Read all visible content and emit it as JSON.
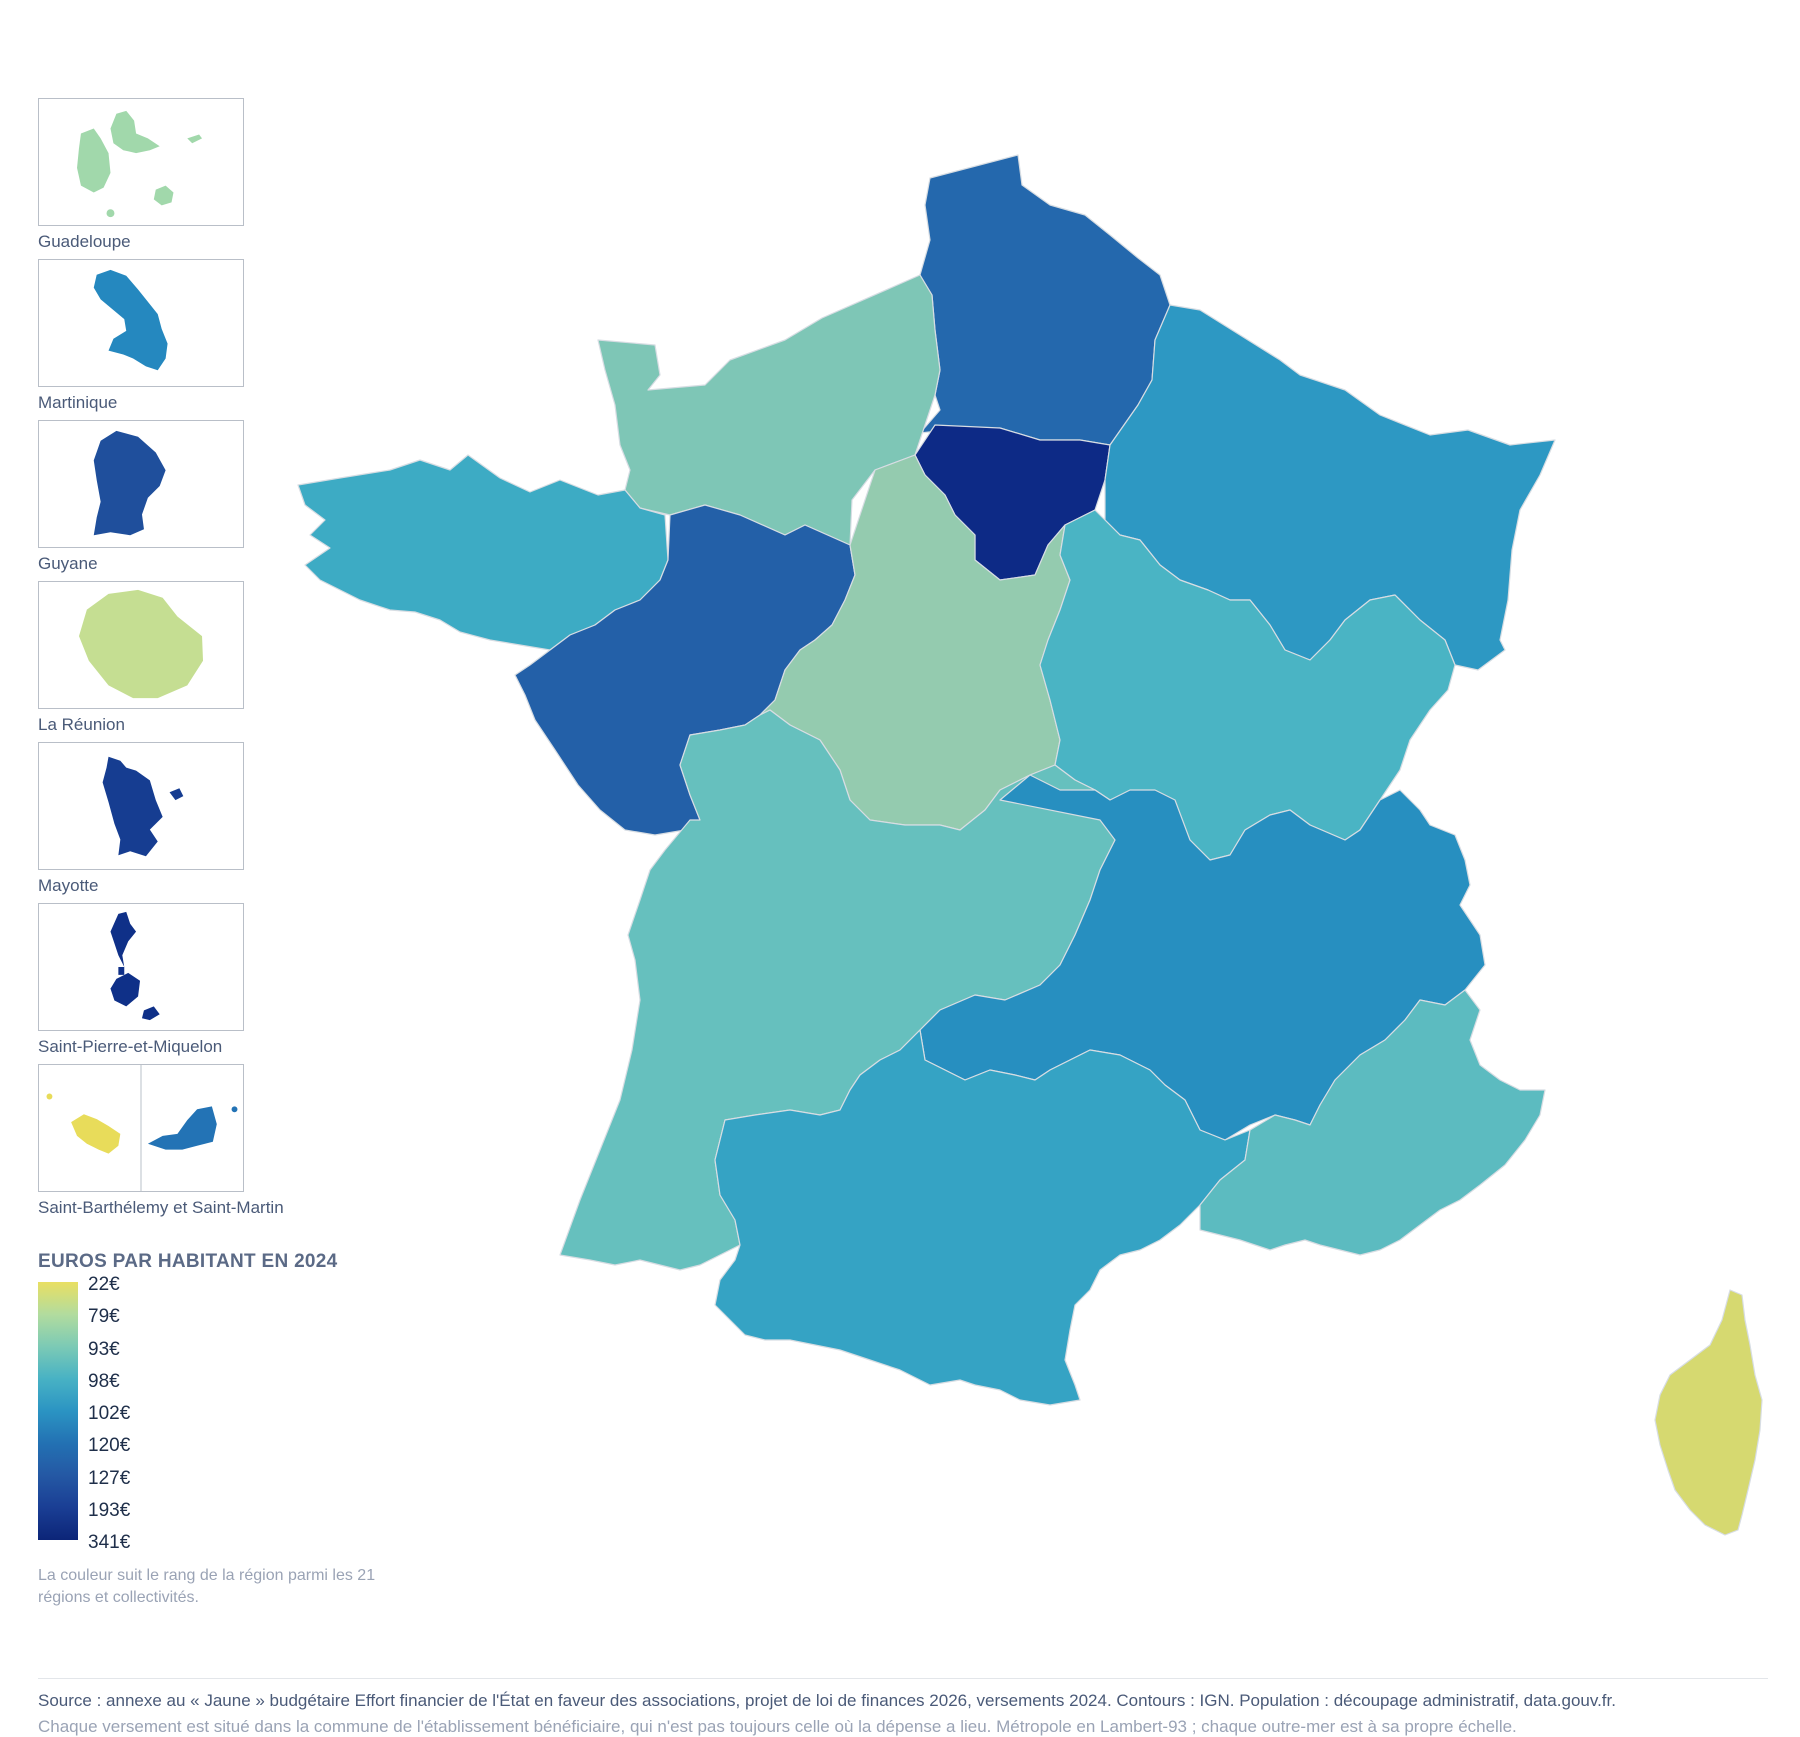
{
  "insets": [
    {
      "id": "guadeloupe",
      "label": "Guadeloupe",
      "color": "#a1d8ab"
    },
    {
      "id": "martinique",
      "label": "Martinique",
      "color": "#2588bf"
    },
    {
      "id": "guyane",
      "label": "Guyane",
      "color": "#1f4f9c"
    },
    {
      "id": "reunion",
      "label": "La Réunion",
      "color": "#c5de92"
    },
    {
      "id": "mayotte",
      "label": "Mayotte",
      "color": "#163d91"
    },
    {
      "id": "spm",
      "label": "Saint-Pierre-et-Miquelon",
      "color": "#0f3088"
    },
    {
      "id": "sbsm",
      "label": "Saint-Barthélemy et Saint-Martin",
      "color": "#e8dc5a",
      "color2": "#2373b5"
    }
  ],
  "legend": {
    "title": "EUROS PAR HABITANT EN 2024",
    "ticks": [
      "22€",
      "79€",
      "93€",
      "98€",
      "102€",
      "120€",
      "127€",
      "193€",
      "341€"
    ],
    "gradient": [
      "#e9df62",
      "#b2dc9e",
      "#7ccab5",
      "#48b2c4",
      "#2b94c3",
      "#2371b3",
      "#2458a4",
      "#1a3e94",
      "#0c2578"
    ],
    "note": "La couleur suit le rang de la région parmi les 21 régions et collectivités."
  },
  "footer": {
    "source": "Source : annexe au « Jaune » budgétaire Effort financier de l'État en faveur des associations, projet de loi de finances 2026, versements 2024. Contours : IGN. Population : découpage administratif, data.gouv.fr.",
    "note": "Chaque versement est situé dans la commune de l'établissement bénéficiaire, qui n'est pas toujours celle où la dépense a lieu. Métropole en Lambert-93 ; chaque outre-mer est à sa propre échelle."
  },
  "regions": [
    {
      "id": "hauts-de-france",
      "color": "#2468ad"
    },
    {
      "id": "normandie",
      "color": "#7ec6b6"
    },
    {
      "id": "ile-de-france",
      "color": "#0d2a86"
    },
    {
      "id": "grand-est",
      "color": "#2d98c3"
    },
    {
      "id": "bretagne",
      "color": "#3dabc4"
    },
    {
      "id": "pays-de-la-loire",
      "color": "#2360a8"
    },
    {
      "id": "centre-val-de-loire",
      "color": "#94cbaf"
    },
    {
      "id": "bourgogne-franche-comte",
      "color": "#4ab4c4"
    },
    {
      "id": "nouvelle-aquitaine",
      "color": "#66c0be"
    },
    {
      "id": "auvergne-rhone-alpes",
      "color": "#278fc0"
    },
    {
      "id": "occitanie",
      "color": "#35a3c4"
    },
    {
      "id": "provence-alpes-cote-d-azur",
      "color": "#5cbbc0"
    },
    {
      "id": "corse",
      "color": "#d6d970"
    }
  ]
}
